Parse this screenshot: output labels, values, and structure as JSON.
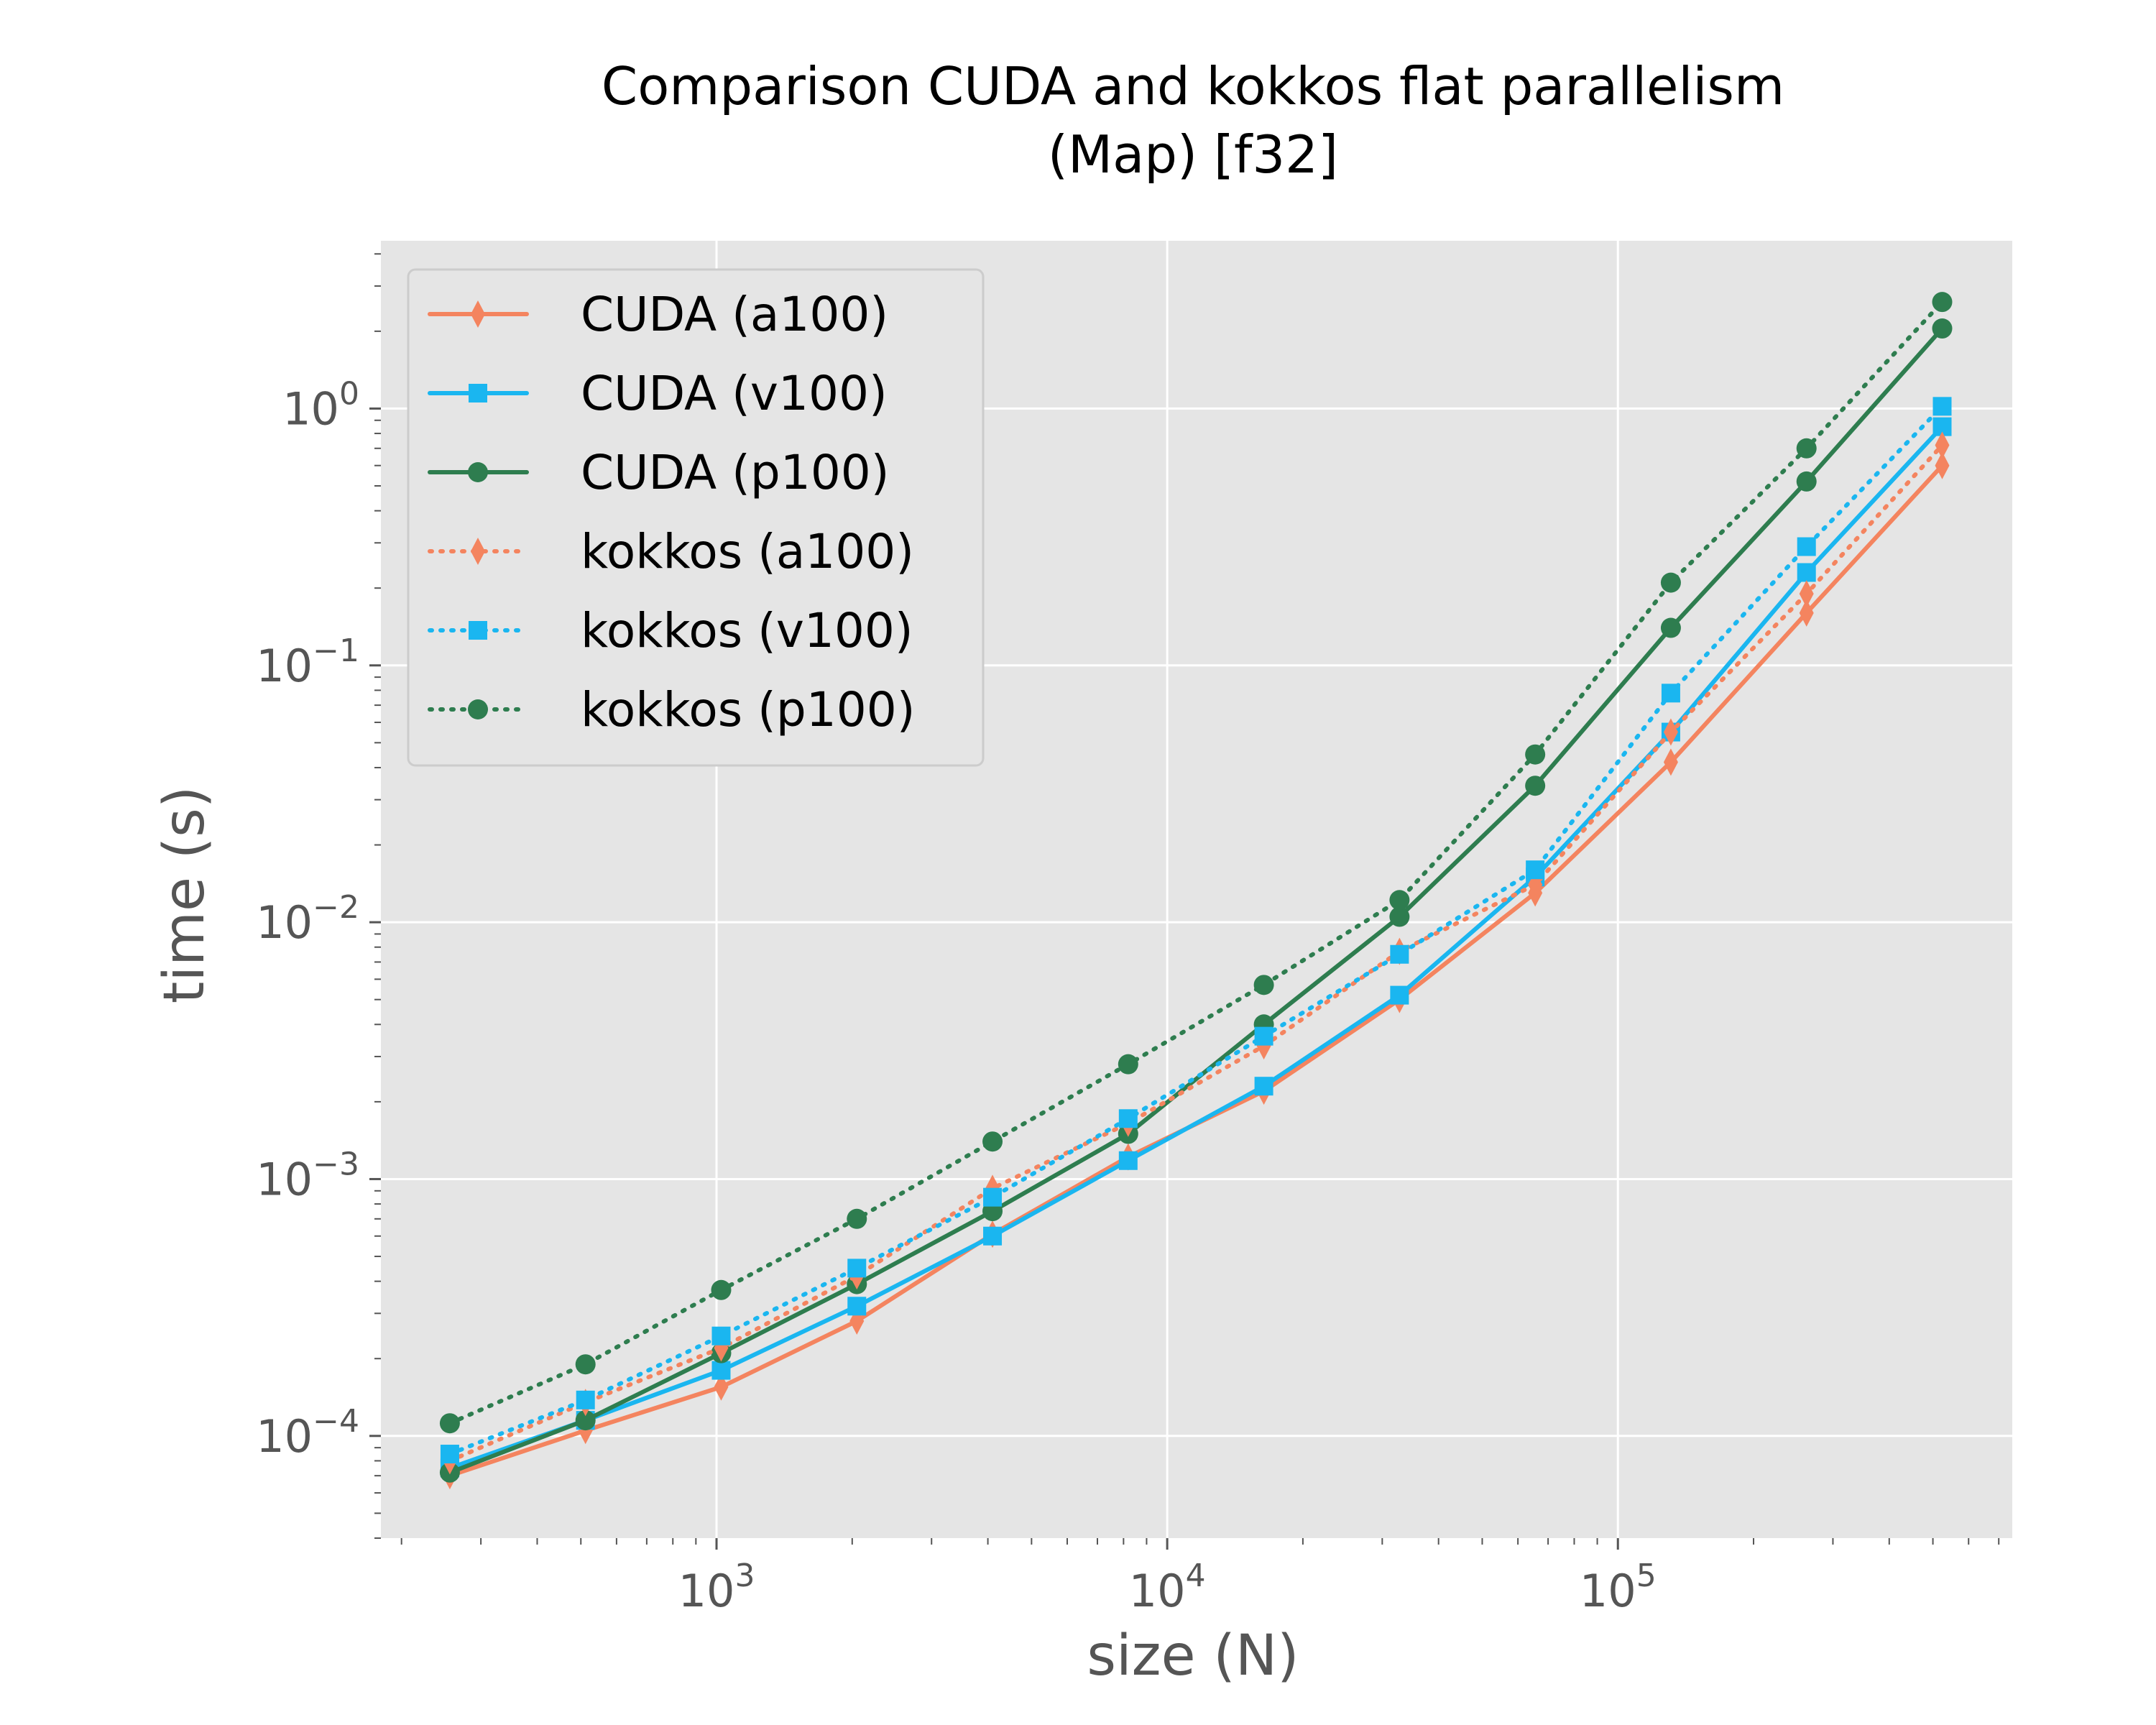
{
  "chart_data": {
    "type": "line",
    "title": "Comparison CUDA and kokkos flat parallelism",
    "subtitle": "(Map) [f32]",
    "xlabel": "size (N)",
    "ylabel": "time (s)",
    "xscale": "log",
    "yscale": "log",
    "xlim": [
      180,
      750000
    ],
    "ylim": [
      4e-05,
      4.5
    ],
    "grid": true,
    "legend_position": "top-left",
    "background_color": "#e5e5e5",
    "x_ticks": [
      {
        "base": "10",
        "exp": "3",
        "value": 1000
      },
      {
        "base": "10",
        "exp": "4",
        "value": 10000
      },
      {
        "base": "10",
        "exp": "5",
        "value": 100000
      }
    ],
    "y_ticks": [
      {
        "base": "10",
        "exp": "−4",
        "value": 0.0001
      },
      {
        "base": "10",
        "exp": "−3",
        "value": 0.001
      },
      {
        "base": "10",
        "exp": "−2",
        "value": 0.01
      },
      {
        "base": "10",
        "exp": "−1",
        "value": 0.1
      },
      {
        "base": "10",
        "exp": "0",
        "value": 1
      }
    ],
    "x": [
      256,
      512,
      1024,
      2048,
      4096,
      8192,
      16384,
      32768,
      65536,
      131072,
      262144,
      524288
    ],
    "series": [
      {
        "name": "CUDA (a100)",
        "color": "#f4845f",
        "dash": "solid",
        "marker": "diamond",
        "values": [
          7e-05,
          0.000105,
          0.000155,
          0.00028,
          0.00061,
          0.00122,
          0.0022,
          0.005,
          0.013,
          0.042,
          0.16,
          0.6
        ]
      },
      {
        "name": "CUDA (v100)",
        "color": "#1ab6f0",
        "dash": "solid",
        "marker": "square",
        "values": [
          7.5e-05,
          0.000115,
          0.00018,
          0.00032,
          0.0006,
          0.00118,
          0.0023,
          0.0052,
          0.015,
          0.055,
          0.23,
          0.85
        ]
      },
      {
        "name": "CUDA (p100)",
        "color": "#2e7d4f",
        "dash": "solid",
        "marker": "circle",
        "values": [
          7.2e-05,
          0.000115,
          0.00021,
          0.00039,
          0.00075,
          0.0015,
          0.004,
          0.0105,
          0.034,
          0.14,
          0.52,
          2.05
        ]
      },
      {
        "name": "kokkos (a100)",
        "color": "#f4845f",
        "dash": "dotted",
        "marker": "diamond",
        "values": [
          8e-05,
          0.000135,
          0.00022,
          0.00042,
          0.00092,
          0.00165,
          0.0033,
          0.0077,
          0.014,
          0.055,
          0.19,
          0.72
        ]
      },
      {
        "name": "kokkos (v100)",
        "color": "#1ab6f0",
        "dash": "dotted",
        "marker": "square",
        "values": [
          8.5e-05,
          0.000138,
          0.000245,
          0.00045,
          0.00085,
          0.00172,
          0.0036,
          0.0075,
          0.016,
          0.078,
          0.29,
          1.02
        ]
      },
      {
        "name": "kokkos (p100)",
        "color": "#2e7d4f",
        "dash": "dotted",
        "marker": "circle",
        "values": [
          0.000112,
          0.00019,
          0.00037,
          0.0007,
          0.0014,
          0.0028,
          0.0057,
          0.0122,
          0.045,
          0.21,
          0.7,
          2.6
        ]
      }
    ]
  }
}
